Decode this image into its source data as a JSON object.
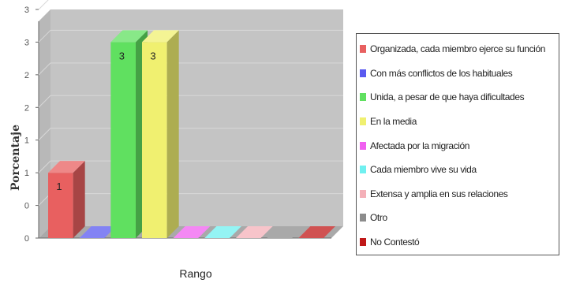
{
  "chart_data": {
    "type": "bar",
    "xlabel": "Rango",
    "ylabel": "Porcentaje",
    "ylim": [
      0,
      3.5
    ],
    "y_tick_labels": [
      "0",
      "0",
      "1",
      "1",
      "2",
      "2",
      "3",
      "3"
    ],
    "grid": true,
    "legend_position": "right",
    "categories": [
      "Organizada, cada miembro ejerce su función",
      "Con más conflictos de los habituales",
      "Unida, a pesar de que haya dificultades",
      "En la media",
      "Afectada por la migración",
      "Cada miembro vive su vida",
      "Extensa y amplia en sus relaciones",
      "Otro",
      "No Contestó"
    ],
    "values": [
      1,
      0,
      3,
      3,
      0,
      0,
      0,
      0,
      0
    ],
    "data_labels": [
      "1",
      "",
      "3",
      "3",
      "",
      "",
      "",
      "",
      ""
    ],
    "colors": [
      "#e86060",
      "#5a5af0",
      "#60e060",
      "#f0f070",
      "#f060f0",
      "#70f0f0",
      "#f4b0b8",
      "#8c8c8c",
      "#c01818"
    ]
  }
}
